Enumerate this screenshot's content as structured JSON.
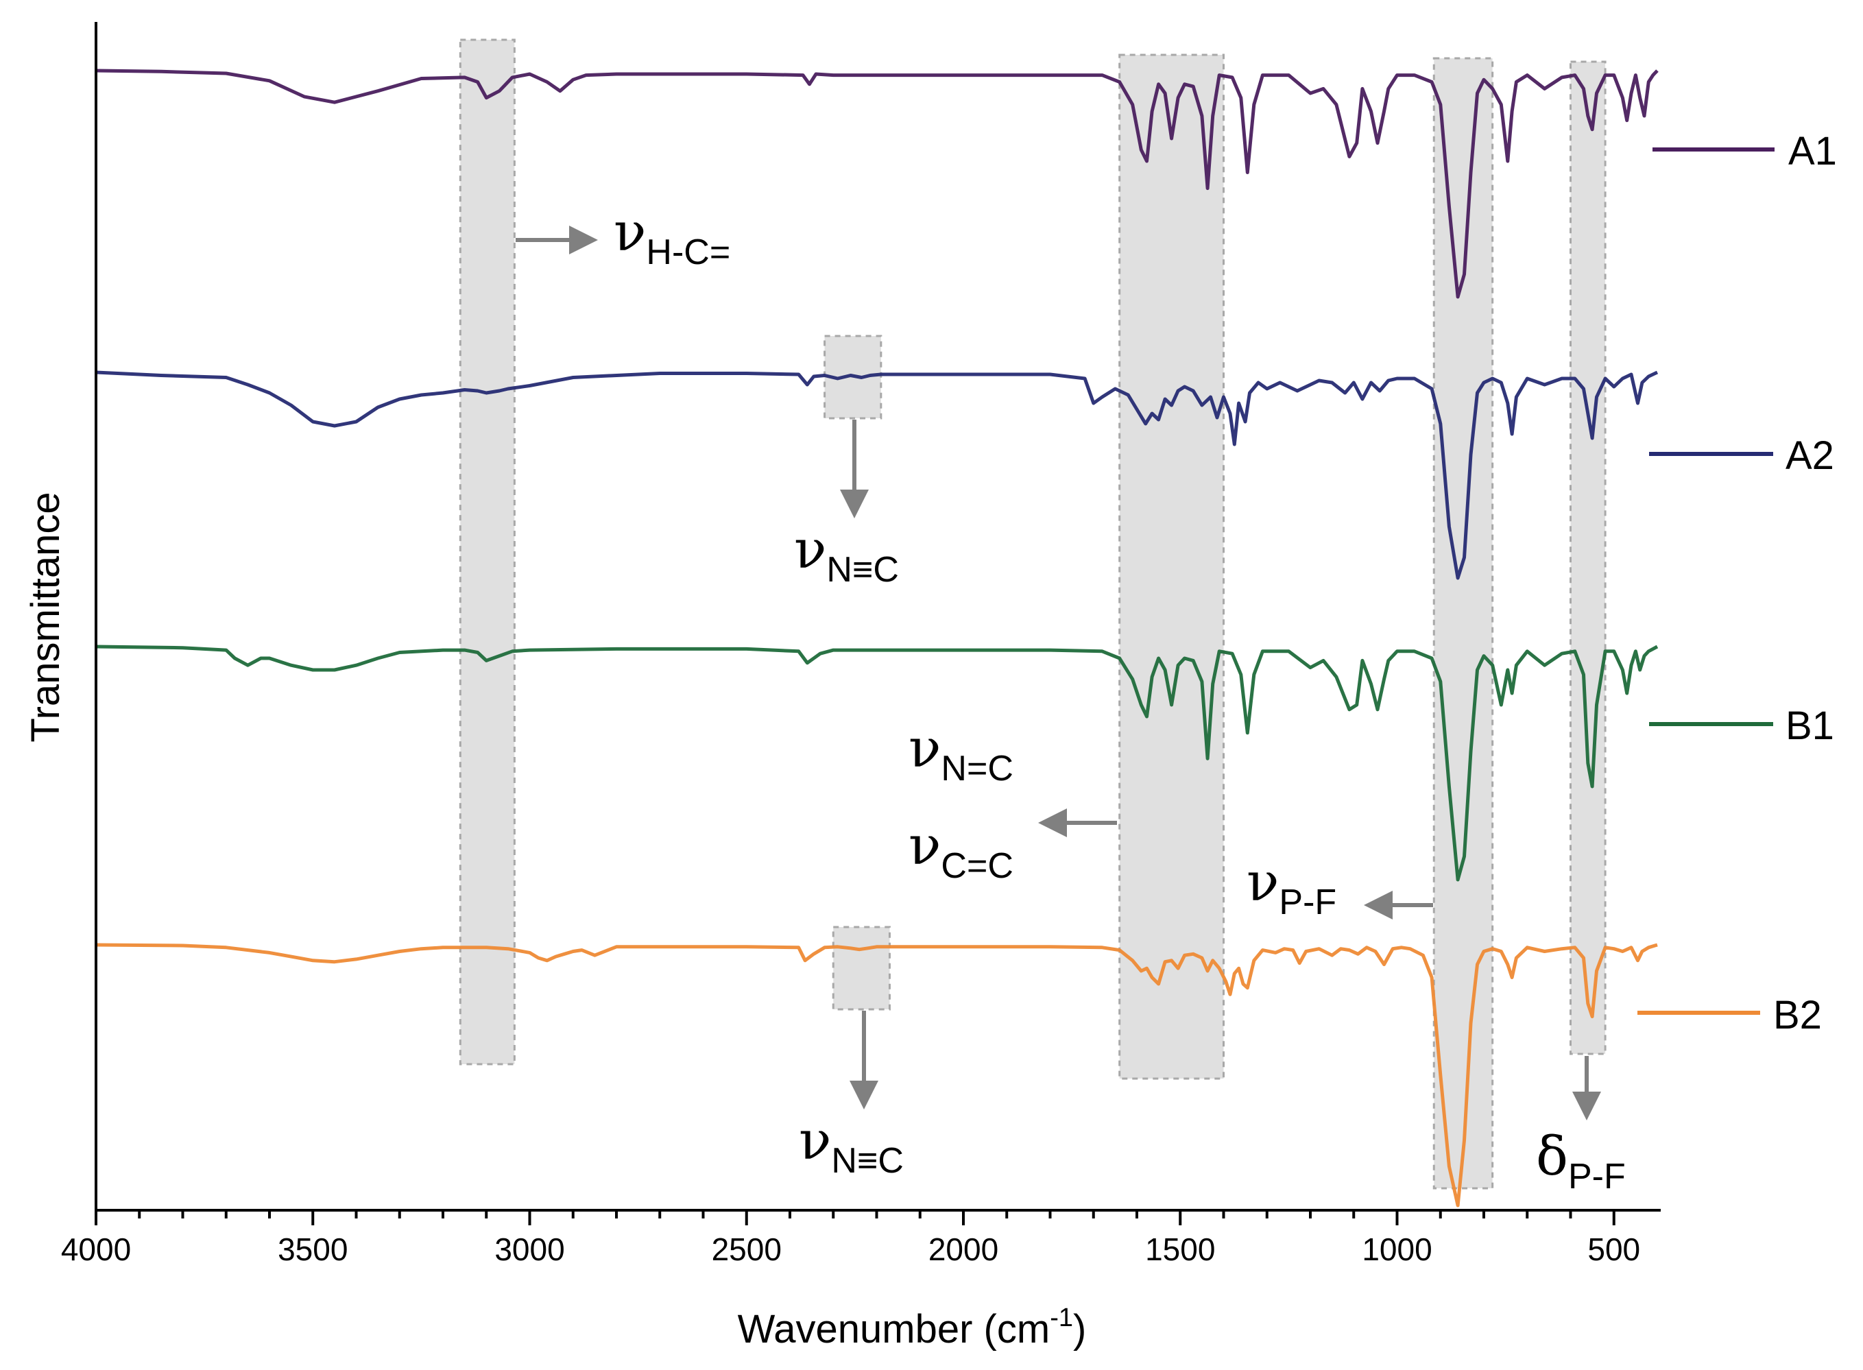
{
  "chart_data": {
    "type": "line",
    "xlabel_main": "Wavenumber (cm",
    "xlabel_sup": "-1",
    "xlabel_close": ")",
    "ylabel": "Transmittance",
    "xlim": [
      4000,
      400
    ],
    "x_ticks": [
      4000,
      3500,
      3000,
      2500,
      2000,
      1500,
      1000,
      500
    ],
    "x_tick_labels": [
      "4000",
      "3500",
      "3000",
      "2500",
      "2000",
      "1500",
      "1000",
      "500"
    ],
    "series": [
      {
        "name": "A1",
        "color": "#4a1f5e",
        "baseline": 0,
        "x": [
          4000,
          3850,
          3700,
          3600,
          3520,
          3450,
          3350,
          3250,
          3150,
          3120,
          3100,
          3070,
          3040,
          3000,
          2960,
          2930,
          2900,
          2870,
          2800,
          2500,
          2370,
          2355,
          2340,
          2300,
          1800,
          1680,
          1640,
          1610,
          1590,
          1577,
          1565,
          1550,
          1535,
          1520,
          1505,
          1490,
          1470,
          1450,
          1437,
          1425,
          1410,
          1380,
          1360,
          1345,
          1330,
          1310,
          1250,
          1200,
          1170,
          1140,
          1110,
          1093,
          1080,
          1060,
          1045,
          1030,
          1020,
          1000,
          960,
          920,
          900,
          880,
          860,
          845,
          830,
          815,
          800,
          780,
          760,
          745,
          735,
          725,
          700,
          660,
          620,
          590,
          570,
          560,
          550,
          540,
          520,
          500,
          480,
          470,
          460,
          450,
          440,
          430,
          420,
          410,
          400
        ],
        "y": [
          0,
          -0.4,
          -1.2,
          -4.5,
          -11.5,
          -14,
          -9,
          -3.5,
          -3,
          -5,
          -12,
          -9,
          -3,
          -1.5,
          -5,
          -9,
          -4,
          -2,
          -1.5,
          -1.5,
          -2,
          -6,
          -1.5,
          -2,
          -2,
          -2,
          -5,
          -15,
          -35,
          -40,
          -18,
          -6,
          -10,
          -30,
          -12,
          -6,
          -7,
          -20,
          -52,
          -20,
          -2,
          -3,
          -12,
          -45,
          -15,
          -2,
          -2,
          -10,
          -8,
          -15,
          -38,
          -32,
          -8,
          -18,
          -32,
          -18,
          -8,
          -2,
          -2,
          -5,
          -15,
          -60,
          -100,
          -90,
          -45,
          -10,
          -4,
          -8,
          -15,
          -40,
          -18,
          -5,
          -2,
          -8,
          -3,
          -2,
          -8,
          -20,
          -26,
          -10,
          -2,
          -2,
          -12,
          -22,
          -10,
          -2,
          -12,
          -20,
          -5,
          -2,
          0
        ]
      },
      {
        "name": "A2",
        "color": "#262b73",
        "baseline": 0,
        "x": [
          4000,
          3850,
          3700,
          3650,
          3600,
          3550,
          3500,
          3450,
          3400,
          3350,
          3300,
          3250,
          3200,
          3150,
          3120,
          3100,
          3070,
          3050,
          3000,
          2900,
          2700,
          2500,
          2380,
          2360,
          2345,
          2320,
          2290,
          2260,
          2235,
          2215,
          2190,
          2100,
          1800,
          1720,
          1700,
          1680,
          1650,
          1620,
          1600,
          1580,
          1565,
          1550,
          1535,
          1520,
          1505,
          1490,
          1470,
          1450,
          1430,
          1415,
          1400,
          1385,
          1375,
          1365,
          1350,
          1340,
          1320,
          1300,
          1270,
          1230,
          1180,
          1150,
          1120,
          1100,
          1080,
          1060,
          1040,
          1020,
          1000,
          960,
          920,
          900,
          880,
          860,
          845,
          830,
          815,
          800,
          780,
          760,
          745,
          735,
          725,
          700,
          660,
          620,
          590,
          570,
          560,
          550,
          540,
          520,
          500,
          480,
          460,
          445,
          435,
          420,
          400
        ],
        "y": [
          0,
          -1.5,
          -2.5,
          -6,
          -10,
          -16,
          -24,
          -26,
          -24,
          -17,
          -13,
          -11,
          -10,
          -8.5,
          -9,
          -10,
          -9,
          -8,
          -6.5,
          -2.5,
          -0.5,
          -0.5,
          -1,
          -6,
          -2,
          -1.5,
          -3,
          -1.5,
          -2.5,
          -1.5,
          -1,
          -1,
          -1,
          -3,
          -15,
          -12,
          -8,
          -11,
          -18,
          -25,
          -20,
          -23,
          -13,
          -16,
          -9,
          -7,
          -9,
          -16,
          -12,
          -22,
          -12,
          -20,
          -35,
          -15,
          -24,
          -10,
          -5,
          -8,
          -5,
          -9,
          -4,
          -5,
          -10,
          -5,
          -13,
          -5,
          -9,
          -4,
          -3,
          -3,
          -8,
          -25,
          -75,
          -100,
          -90,
          -40,
          -10,
          -5,
          -3,
          -5,
          -15,
          -30,
          -12,
          -3,
          -6,
          -3,
          -3,
          -8,
          -20,
          -32,
          -12,
          -3,
          -7,
          -3,
          -1,
          -15,
          -5,
          -2,
          0
        ]
      },
      {
        "name": "B1",
        "color": "#1f6b3b",
        "baseline": 0,
        "x": [
          4000,
          3800,
          3700,
          3680,
          3650,
          3620,
          3600,
          3550,
          3500,
          3450,
          3400,
          3350,
          3300,
          3200,
          3150,
          3120,
          3100,
          3070,
          3040,
          3000,
          2800,
          2500,
          2380,
          2360,
          2345,
          2330,
          2300,
          1800,
          1680,
          1640,
          1610,
          1590,
          1577,
          1565,
          1550,
          1535,
          1520,
          1505,
          1490,
          1470,
          1450,
          1437,
          1425,
          1410,
          1380,
          1360,
          1345,
          1330,
          1310,
          1250,
          1200,
          1170,
          1140,
          1110,
          1093,
          1080,
          1060,
          1045,
          1030,
          1020,
          1000,
          960,
          920,
          900,
          880,
          860,
          845,
          830,
          815,
          800,
          780,
          760,
          745,
          735,
          725,
          700,
          660,
          620,
          590,
          570,
          560,
          550,
          540,
          520,
          500,
          480,
          470,
          460,
          450,
          440,
          430,
          420,
          400
        ],
        "y": [
          0,
          -0.5,
          -1.5,
          -5,
          -8,
          -5,
          -5,
          -8,
          -10,
          -10,
          -8,
          -5,
          -2.5,
          -1.5,
          -1.5,
          -2.5,
          -6,
          -4,
          -2,
          -1.5,
          -1,
          -1,
          -2,
          -7,
          -5,
          -3,
          -1.5,
          -1.5,
          -2,
          -5,
          -14,
          -25,
          -30,
          -13,
          -5,
          -10,
          -25,
          -8,
          -5,
          -6,
          -15,
          -48,
          -16,
          -2,
          -3,
          -12,
          -37,
          -12,
          -2,
          -2,
          -9,
          -6,
          -13,
          -27,
          -25,
          -6,
          -16,
          -27,
          -14,
          -6,
          -2,
          -2,
          -5,
          -15,
          -60,
          -100,
          -90,
          -45,
          -10,
          -4,
          -8,
          -25,
          -10,
          -20,
          -8,
          -2,
          -8,
          -3,
          -2,
          -12,
          -50,
          -60,
          -25,
          -2,
          -2,
          -10,
          -20,
          -8,
          -2,
          -10,
          -4,
          -2,
          0
        ]
      },
      {
        "name": "B2",
        "color": "#ee8a35",
        "baseline": 0,
        "x": [
          4000,
          3800,
          3700,
          3600,
          3550,
          3500,
          3450,
          3400,
          3350,
          3300,
          3250,
          3200,
          3150,
          3100,
          3050,
          3000,
          2980,
          2960,
          2940,
          2920,
          2900,
          2880,
          2850,
          2800,
          2500,
          2380,
          2365,
          2345,
          2320,
          2290,
          2260,
          2240,
          2220,
          2200,
          2100,
          1800,
          1680,
          1640,
          1610,
          1590,
          1577,
          1565,
          1550,
          1535,
          1520,
          1505,
          1490,
          1470,
          1450,
          1437,
          1425,
          1410,
          1395,
          1385,
          1375,
          1365,
          1355,
          1345,
          1330,
          1310,
          1280,
          1260,
          1240,
          1225,
          1210,
          1180,
          1150,
          1130,
          1110,
          1090,
          1070,
          1050,
          1030,
          1020,
          1010,
          990,
          970,
          940,
          920,
          900,
          880,
          860,
          845,
          830,
          815,
          800,
          780,
          760,
          745,
          735,
          725,
          700,
          660,
          620,
          590,
          570,
          560,
          550,
          540,
          520,
          500,
          480,
          460,
          445,
          435,
          420,
          400
        ],
        "y": [
          0,
          -0.5,
          -2,
          -6,
          -9,
          -12,
          -13,
          -11,
          -8,
          -5,
          -3,
          -2,
          -2,
          -2,
          -3,
          -6,
          -10,
          -12,
          -9,
          -7,
          -5,
          -4,
          -8,
          -1.5,
          -1.5,
          -2,
          -12,
          -7,
          -2,
          -1.5,
          -2.5,
          -3.5,
          -2.5,
          -1.5,
          -1.5,
          -1.5,
          -2,
          -4,
          -12,
          -20,
          -18,
          -25,
          -30,
          -13,
          -12,
          -18,
          -8,
          -7,
          -10,
          -20,
          -12,
          -18,
          -28,
          -38,
          -22,
          -18,
          -30,
          -33,
          -12,
          -4,
          -6,
          -3,
          -4,
          -14,
          -5,
          -3,
          -8,
          -3,
          -4,
          -7,
          -2,
          -5,
          -15,
          -9,
          -3,
          -2,
          -3,
          -8,
          -25,
          -100,
          -170,
          -200,
          -150,
          -60,
          -15,
          -5,
          -3,
          -5,
          -15,
          -25,
          -10,
          -2,
          -5,
          -3,
          -2,
          -10,
          -45,
          -55,
          -20,
          -2,
          -3,
          -5,
          -2,
          -12,
          -5,
          -2,
          0
        ]
      }
    ],
    "legend": [
      "A1",
      "A2",
      "B1",
      "B2"
    ],
    "highlight_bands": [
      {
        "x_from": 3160,
        "x_to": 3035
      },
      {
        "x_from": 1640,
        "x_to": 1400
      },
      {
        "x_from": 915,
        "x_to": 780
      },
      {
        "x_from": 600,
        "x_to": 520
      },
      {
        "x_from": 2320,
        "x_to": 2190
      },
      {
        "x_from": 2300,
        "x_to": 2170
      }
    ],
    "annotations": [
      {
        "symbol": "ν",
        "subscript": "H-C="
      },
      {
        "symbol": "ν",
        "subscript": "N≡C"
      },
      {
        "symbol": "ν",
        "subscript": "N=C"
      },
      {
        "symbol": "ν",
        "subscript": "C=C"
      },
      {
        "symbol": "ν",
        "subscript": "P-F"
      },
      {
        "symbol": "ν",
        "subscript": "N≡C"
      },
      {
        "symbol": "δ",
        "subscript": "P-F"
      }
    ]
  }
}
